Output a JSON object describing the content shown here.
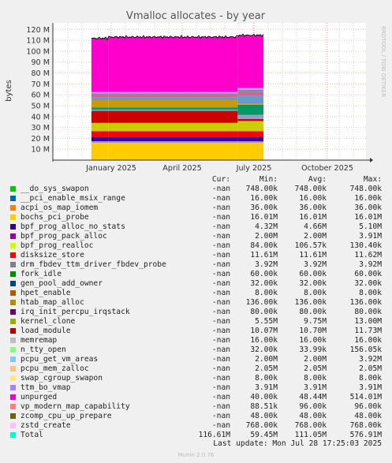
{
  "chart_data": {
    "type": "area",
    "title": "Vmalloc allocates - by year",
    "ylabel": "bytes",
    "side_label": "RRDTOOL / TOBI OETIKER",
    "y_ticks": [
      "10 M",
      "20 M",
      "30 M",
      "40 M",
      "50 M",
      "60 M",
      "70 M",
      "80 M",
      "90 M",
      "100 M",
      "110 M",
      "120 M"
    ],
    "x_ticks": [
      "January 2025",
      "April 2025",
      "July 2025",
      "October 2025"
    ],
    "ylim": [
      0,
      126
    ],
    "y_unit": "M bytes",
    "segments": [
      {
        "start": 0.0,
        "end": 0.1,
        "stack": [
          16.0,
          1.4,
          3.6,
          5.6,
          7.6,
          11.0,
          1.2,
          2.0,
          7.0,
          2.0,
          3.6,
          0.5,
          1.0,
          49.3
        ]
      },
      {
        "start": 0.1,
        "end": 0.85,
        "stack": [
          16.0,
          1.4,
          3.6,
          5.6,
          7.6,
          11.0,
          1.2,
          2.0,
          7.0,
          2.0,
          3.6,
          0.5,
          1.0,
          50.5
        ]
      },
      {
        "start": 0.85,
        "end": 1.0,
        "stack": [
          16.0,
          1.4,
          3.6,
          5.6,
          9.3,
          1.9,
          3.7,
          9.4,
          1.0,
          7.0,
          3.8,
          2.0,
          1.4,
          48.5
        ]
      }
    ],
    "stack_colors": [
      "#FFCC00",
      "#999999",
      "#330099",
      "#FF0000",
      "#CCCC00",
      "#CC0000",
      "#9999CC",
      "#009966",
      "#CC9900",
      "#6699CC",
      "#CC6699",
      "#669999",
      "#CC99FF",
      "#FF00CC"
    ]
  },
  "legend": {
    "headers": {
      "cur": "Cur:",
      "min": "Min:",
      "avg": "Avg:",
      "max": "Max:"
    },
    "rows": [
      {
        "name": "__do_sys_swapon",
        "color": "#00CC00",
        "cur": "-nan",
        "min": "748.00k",
        "avg": "748.00k",
        "max": "748.00k"
      },
      {
        "name": "__pci_enable_msix_range",
        "color": "#0066B3",
        "cur": "-nan",
        "min": "16.00k",
        "avg": "16.00k",
        "max": "16.00k"
      },
      {
        "name": "acpi_os_map_iomem",
        "color": "#FF8000",
        "cur": "-nan",
        "min": "36.00k",
        "avg": "36.00k",
        "max": "36.00k"
      },
      {
        "name": "bochs_pci_probe",
        "color": "#FFCC00",
        "cur": "-nan",
        "min": "16.01M",
        "avg": "16.01M",
        "max": "16.01M"
      },
      {
        "name": "bpf_prog_alloc_no_stats",
        "color": "#330099",
        "cur": "-nan",
        "min": "4.32M",
        "avg": "4.66M",
        "max": "5.10M"
      },
      {
        "name": "bpf_prog_pack_alloc",
        "color": "#990099",
        "cur": "-nan",
        "min": "2.00M",
        "avg": "2.00M",
        "max": "3.91M"
      },
      {
        "name": "bpf_prog_realloc",
        "color": "#CCFF00",
        "cur": "-nan",
        "min": "84.00k",
        "avg": "106.57k",
        "max": "130.40k"
      },
      {
        "name": "disksize_store",
        "color": "#FF0000",
        "cur": "-nan",
        "min": "11.61M",
        "avg": "11.61M",
        "max": "11.62M"
      },
      {
        "name": "drm_fbdev_ttm_driver_fbdev_probe",
        "color": "#808080",
        "cur": "-nan",
        "min": "3.92M",
        "avg": "3.92M",
        "max": "3.92M"
      },
      {
        "name": "fork_idle",
        "color": "#008F00",
        "cur": "-nan",
        "min": "60.00k",
        "avg": "60.00k",
        "max": "60.00k"
      },
      {
        "name": "gen_pool_add_owner",
        "color": "#00487D",
        "cur": "-nan",
        "min": "32.00k",
        "avg": "32.00k",
        "max": "32.00k"
      },
      {
        "name": "hpet_enable",
        "color": "#B35A00",
        "cur": "-nan",
        "min": "8.00k",
        "avg": "8.00k",
        "max": "8.00k"
      },
      {
        "name": "htab_map_alloc",
        "color": "#B38F00",
        "cur": "-nan",
        "min": "136.00k",
        "avg": "136.00k",
        "max": "136.00k"
      },
      {
        "name": "irq_init_percpu_irqstack",
        "color": "#6B006B",
        "cur": "-nan",
        "min": "80.00k",
        "avg": "80.00k",
        "max": "80.00k"
      },
      {
        "name": "kernel_clone",
        "color": "#8FB300",
        "cur": "-nan",
        "min": "5.55M",
        "avg": "9.75M",
        "max": "13.00M"
      },
      {
        "name": "load_module",
        "color": "#B30000",
        "cur": "-nan",
        "min": "10.07M",
        "avg": "10.70M",
        "max": "11.73M"
      },
      {
        "name": "memremap",
        "color": "#BEBEBE",
        "cur": "-nan",
        "min": "16.00k",
        "avg": "16.00k",
        "max": "16.00k"
      },
      {
        "name": "n_tty_open",
        "color": "#80FF80",
        "cur": "-nan",
        "min": "32.00k",
        "avg": "33.99k",
        "max": "156.05k"
      },
      {
        "name": "pcpu_get_vm_areas",
        "color": "#80C9FF",
        "cur": "-nan",
        "min": "2.00M",
        "avg": "2.00M",
        "max": "3.92M"
      },
      {
        "name": "pcpu_mem_zalloc",
        "color": "#FFC080",
        "cur": "-nan",
        "min": "2.05M",
        "avg": "2.05M",
        "max": "2.05M"
      },
      {
        "name": "swap_cgroup_swapon",
        "color": "#FFE680",
        "cur": "-nan",
        "min": "8.00k",
        "avg": "8.00k",
        "max": "8.00k"
      },
      {
        "name": "ttm_bo_vmap",
        "color": "#AA80FF",
        "cur": "-nan",
        "min": "3.91M",
        "avg": "3.91M",
        "max": "3.91M"
      },
      {
        "name": "unpurged",
        "color": "#EE00CC",
        "cur": "-nan",
        "min": "40.00k",
        "avg": "48.44M",
        "max": "514.01M"
      },
      {
        "name": "vp_modern_map_capability",
        "color": "#FF8080",
        "cur": "-nan",
        "min": "88.51k",
        "avg": "96.00k",
        "max": "96.00k"
      },
      {
        "name": "zcomp_cpu_up_prepare",
        "color": "#666600",
        "cur": "-nan",
        "min": "48.00k",
        "avg": "48.00k",
        "max": "48.00k"
      },
      {
        "name": "zstd_create",
        "color": "#FFBFFF",
        "cur": "-nan",
        "min": "768.00k",
        "avg": "768.00k",
        "max": "768.00k"
      },
      {
        "name": "Total",
        "color": "#00FFCC",
        "cur": "116.61M",
        "min": "59.45M",
        "avg": "111.05M",
        "max": "576.91M"
      }
    ]
  },
  "footer": {
    "last_update": "Last update: Mon Jul 28 17:25:03 2025",
    "munin": "Munin 2.0.76"
  }
}
